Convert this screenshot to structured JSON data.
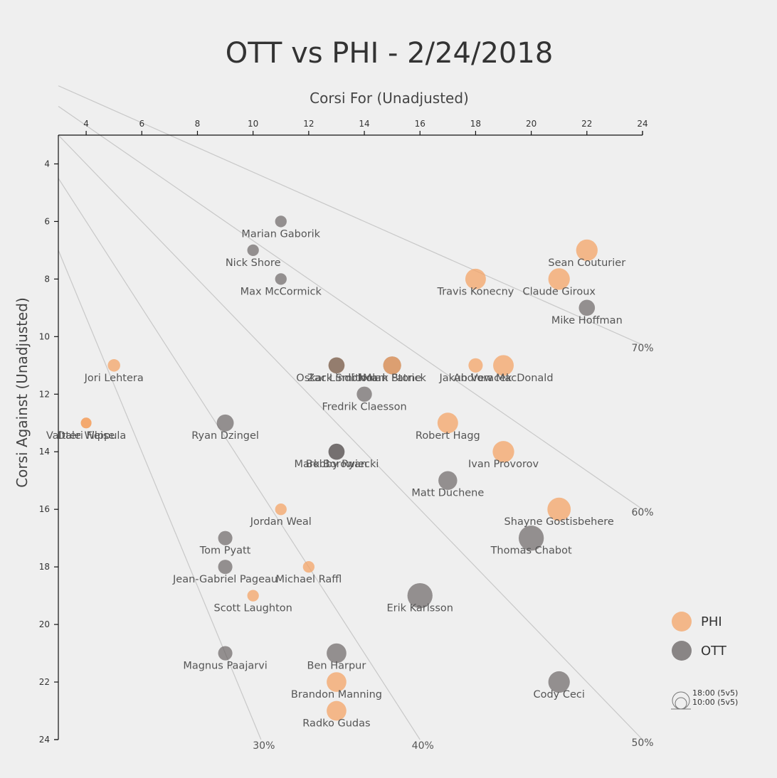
{
  "chart_data": {
    "type": "scatter",
    "title": "OTT vs PHI - 2/24/2018",
    "xlabel": "Corsi For (Unadjusted)",
    "ylabel": "Corsi Against (Unadjusted)",
    "xlim": [
      3,
      24
    ],
    "ylim": [
      3,
      24
    ],
    "x_ticks": [
      4,
      6,
      8,
      10,
      12,
      14,
      16,
      18,
      20,
      22,
      24
    ],
    "y_ticks": [
      4,
      6,
      8,
      10,
      12,
      14,
      16,
      18,
      20,
      22,
      24
    ],
    "reference_lines": [
      {
        "pct": 0.3,
        "label": "30%"
      },
      {
        "pct": 0.4,
        "label": "40%"
      },
      {
        "pct": 0.5,
        "label": "50%"
      },
      {
        "pct": 0.6,
        "label": "60%"
      },
      {
        "pct": 0.7,
        "label": "70%"
      }
    ],
    "series": [
      {
        "name": "PHI",
        "color": "#f4a467"
      },
      {
        "name": "OTT",
        "color": "#676262"
      }
    ],
    "points": [
      {
        "player": "Marian Gaborik",
        "team": "OTT",
        "cf": 11,
        "ca": 6,
        "toi": 10.5
      },
      {
        "player": "Nick Shore",
        "team": "OTT",
        "cf": 10,
        "ca": 7,
        "toi": 10.5
      },
      {
        "player": "Max McCormick",
        "team": "OTT",
        "cf": 11,
        "ca": 8,
        "toi": 10.5
      },
      {
        "player": "Sean Couturier",
        "team": "PHI",
        "cf": 22,
        "ca": 7,
        "toi": 16
      },
      {
        "player": "Travis Konecny",
        "team": "PHI",
        "cf": 18,
        "ca": 8,
        "toi": 15.5
      },
      {
        "player": "Claude Giroux",
        "team": "PHI",
        "cf": 21,
        "ca": 8,
        "toi": 16
      },
      {
        "player": "Mike Hoffman",
        "team": "OTT",
        "cf": 22,
        "ca": 9,
        "toi": 13
      },
      {
        "player": "Jori Lehtera",
        "team": "PHI",
        "cf": 5,
        "ca": 11,
        "toi": 11
      },
      {
        "player": "Oskar Lindblom",
        "team": "PHI",
        "cf": 13,
        "ca": 11,
        "toi": 13
      },
      {
        "player": "Zack Smith",
        "team": "OTT",
        "cf": 13,
        "ca": 11,
        "toi": 13
      },
      {
        "player": "Mark Stone",
        "team": "OTT",
        "cf": 15,
        "ca": 11,
        "toi": 14
      },
      {
        "player": "Nolan Patrick",
        "team": "PHI",
        "cf": 15,
        "ca": 11,
        "toi": 14
      },
      {
        "player": "Andrew MacDonald",
        "team": "PHI",
        "cf": 19,
        "ca": 11,
        "toi": 15.5
      },
      {
        "player": "Jakub Voracek",
        "team": "PHI",
        "cf": 18,
        "ca": 11,
        "toi": 12
      },
      {
        "player": "Fredrik Claesson",
        "team": "OTT",
        "cf": 14,
        "ca": 12,
        "toi": 12.5
      },
      {
        "player": "Dale Weise",
        "team": "PHI",
        "cf": 4,
        "ca": 13,
        "toi": 10
      },
      {
        "player": "Valtteri Filppula",
        "team": "PHI",
        "cf": 4,
        "ca": 13,
        "toi": 10
      },
      {
        "player": "Ryan Dzingel",
        "team": "OTT",
        "cf": 9,
        "ca": 13,
        "toi": 13.5
      },
      {
        "player": "Robert Hagg",
        "team": "PHI",
        "cf": 17,
        "ca": 13,
        "toi": 15.5
      },
      {
        "player": "Mark Borowiecki",
        "team": "OTT",
        "cf": 13,
        "ca": 14,
        "toi": 13
      },
      {
        "player": "Bobby Ryan",
        "team": "OTT",
        "cf": 13,
        "ca": 14,
        "toi": 13
      },
      {
        "player": "Ivan Provorov",
        "team": "PHI",
        "cf": 19,
        "ca": 14,
        "toi": 16
      },
      {
        "player": "Matt Duchene",
        "team": "OTT",
        "cf": 17,
        "ca": 15,
        "toi": 14.5
      },
      {
        "player": "Jordan Weal",
        "team": "PHI",
        "cf": 11,
        "ca": 16,
        "toi": 10.5
      },
      {
        "player": "Shayne Gostisbehere",
        "team": "PHI",
        "cf": 21,
        "ca": 16,
        "toi": 17
      },
      {
        "player": "Thomas Chabot",
        "team": "OTT",
        "cf": 20,
        "ca": 17,
        "toi": 18
      },
      {
        "player": "Tom Pyatt",
        "team": "OTT",
        "cf": 9,
        "ca": 17,
        "toi": 12
      },
      {
        "player": "Jean-Gabriel Pageau",
        "team": "OTT",
        "cf": 9,
        "ca": 18,
        "toi": 12
      },
      {
        "player": "Michael Raffl",
        "team": "PHI",
        "cf": 12,
        "ca": 18,
        "toi": 10.5
      },
      {
        "player": "Scott Laughton",
        "team": "PHI",
        "cf": 10,
        "ca": 19,
        "toi": 10.5
      },
      {
        "player": "Erik Karlsson",
        "team": "OTT",
        "cf": 16,
        "ca": 19,
        "toi": 18
      },
      {
        "player": "Magnus Paajarvi",
        "team": "OTT",
        "cf": 9,
        "ca": 21,
        "toi": 12
      },
      {
        "player": "Ben Harpur",
        "team": "OTT",
        "cf": 13,
        "ca": 21,
        "toi": 15
      },
      {
        "player": "Brandon Manning",
        "team": "PHI",
        "cf": 13,
        "ca": 22,
        "toi": 15
      },
      {
        "player": "Radko Gudas",
        "team": "PHI",
        "cf": 13,
        "ca": 23,
        "toi": 15
      },
      {
        "player": "Cody Ceci",
        "team": "OTT",
        "cf": 21,
        "ca": 22,
        "toi": 16
      }
    ],
    "size_legend": [
      {
        "toi": 18,
        "label": "18:00 (5v5)"
      },
      {
        "toi": 10,
        "label": "10:00 (5v5)"
      }
    ],
    "legend": [
      {
        "team": "PHI",
        "label": "PHI",
        "color": "#f4a467"
      },
      {
        "team": "OTT",
        "label": "OTT",
        "color": "#676262"
      }
    ]
  }
}
